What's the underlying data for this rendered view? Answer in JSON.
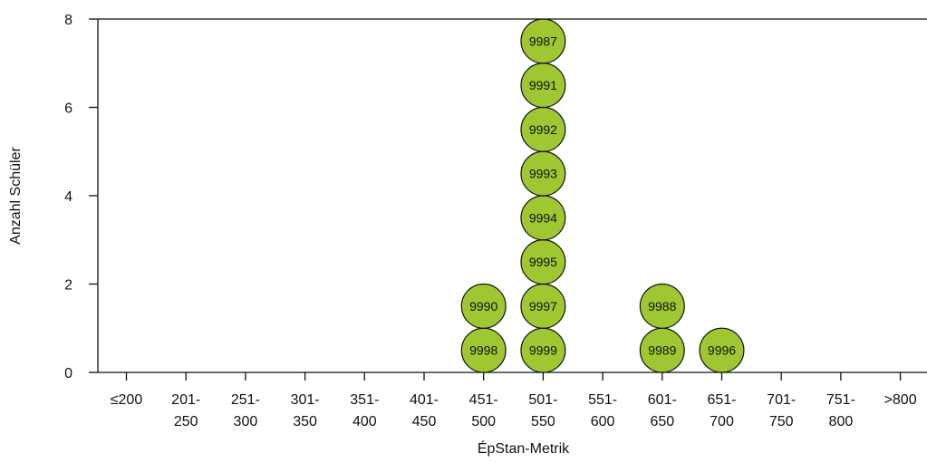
{
  "chart_data": {
    "type": "dot",
    "xlabel": "ÉpStan-Metrik",
    "ylabel": "Anzahl Schüler",
    "categories": [
      [
        "≤200"
      ],
      [
        "201-",
        "250"
      ],
      [
        "251-",
        "300"
      ],
      [
        "301-",
        "350"
      ],
      [
        "351-",
        "400"
      ],
      [
        "401-",
        "450"
      ],
      [
        "451-",
        "500"
      ],
      [
        "501-",
        "550"
      ],
      [
        "551-",
        "600"
      ],
      [
        "601-",
        "650"
      ],
      [
        "651-",
        "700"
      ],
      [
        "701-",
        "750"
      ],
      [
        "751-",
        "800"
      ],
      [
        ">800"
      ]
    ],
    "ylim": [
      0,
      8
    ],
    "yticks": [
      0,
      2,
      4,
      6,
      8
    ],
    "grid": false,
    "dot_color": "#9ec731",
    "dots": [
      {
        "category": 6,
        "ids": [
          "9998",
          "9990"
        ]
      },
      {
        "category": 7,
        "ids": [
          "9999",
          "9997",
          "9995",
          "9994",
          "9993",
          "9992",
          "9991",
          "9987"
        ]
      },
      {
        "category": 9,
        "ids": [
          "9989",
          "9988"
        ]
      },
      {
        "category": 10,
        "ids": [
          "9996"
        ]
      }
    ]
  }
}
